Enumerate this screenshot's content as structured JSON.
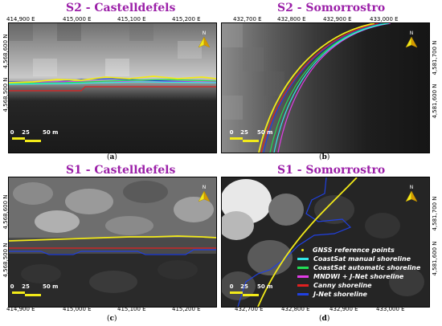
{
  "panels": [
    {
      "id": "a",
      "title": "S2 - Castelldefels",
      "caption": "a",
      "ticks_top": [
        "414,900 E",
        "415,000 E",
        "415,100 E",
        "415,200 E"
      ],
      "ticks_left": [
        "4,568,600 N",
        "4,568,500 N"
      ]
    },
    {
      "id": "b",
      "title": "S2 - Somorrostro",
      "caption": "b",
      "ticks_top": [
        "432,700 E",
        "432,800 E",
        "432,900 E",
        "433,000 E"
      ],
      "ticks_right": [
        "4,581,700 N",
        "4,581,600 N"
      ]
    },
    {
      "id": "c",
      "title": "S1 - Castelldefels",
      "caption": "c",
      "ticks_bottom": [
        "414,900 E",
        "415,000 E",
        "415,100 E",
        "415,200 E"
      ],
      "ticks_left": [
        "4,568,600 N",
        "4,568,500 N"
      ]
    },
    {
      "id": "d",
      "title": "S1 - Somorrostro",
      "caption": "d",
      "ticks_bottom": [
        "432,700 E",
        "432,800 E",
        "432,900 E",
        "433,000 E"
      ],
      "ticks_right": [
        "4,581,700 N",
        "4,581,600 N"
      ]
    }
  ],
  "scale_bar": {
    "zero": "0",
    "mid": "25",
    "end": "50 m"
  },
  "north_label": "N",
  "legend": [
    {
      "label": "GNSS reference points",
      "color": "#f2ea19",
      "kind": "dot"
    },
    {
      "label": "CoastSat manual shoreline",
      "color": "#33e6e6",
      "kind": "line"
    },
    {
      "label": "CoastSat automatic shoreline",
      "color": "#22dd55",
      "kind": "line"
    },
    {
      "label": "MNDWI + J-Net shoreline",
      "color": "#e13ce6",
      "kind": "line"
    },
    {
      "label": "Canny shoreline",
      "color": "#e02020",
      "kind": "line"
    },
    {
      "label": "J-Net shoreline",
      "color": "#2040e0",
      "kind": "line"
    }
  ],
  "colors": {
    "gnss": "#f2ea19",
    "coastsat_manual": "#33e6e6",
    "coastsat_auto": "#22dd55",
    "mndwi_jnet": "#e13ce6",
    "canny": "#e02020",
    "jnet": "#2040e0",
    "title": "#9b1fa8"
  }
}
